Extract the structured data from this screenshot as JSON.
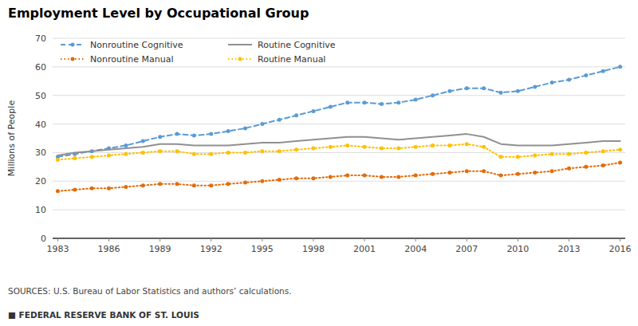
{
  "chart_data": {
    "type": "line",
    "title": "Employment Level by Occupational Group",
    "ylabel": "Millions of People",
    "annotations": [
      "SOURCES: U.S. Bureau of Labor Statistics and authors’ calculations.",
      "■  FEDERAL RESERVE BANK OF ST. LOUIS"
    ],
    "x": [
      1983,
      1984,
      1985,
      1986,
      1987,
      1988,
      1989,
      1990,
      1991,
      1992,
      1993,
      1994,
      1995,
      1996,
      1997,
      1998,
      1999,
      2000,
      2001,
      2002,
      2003,
      2004,
      2005,
      2006,
      2007,
      2008,
      2009,
      2010,
      2011,
      2012,
      2013,
      2014,
      2015,
      2016
    ],
    "xlim": [
      1982.7,
      2016.3
    ],
    "xticks": [
      1983,
      1986,
      1989,
      1992,
      1995,
      1998,
      2001,
      2004,
      2007,
      2010,
      2013,
      2016
    ],
    "ylim": [
      0,
      70
    ],
    "yticks": [
      0,
      10,
      20,
      30,
      40,
      50,
      60,
      70
    ],
    "grid": true,
    "legend": "top-left",
    "series": [
      {
        "name": "Nonroutine Cognitive",
        "color": "#5b9bd5",
        "line_style": "dashed",
        "marker": "circle",
        "values": [
          28.5,
          29.5,
          30.5,
          31.5,
          32.5,
          34.0,
          35.5,
          36.5,
          36.0,
          36.5,
          37.5,
          38.5,
          40.0,
          41.5,
          43.0,
          44.5,
          46.0,
          47.5,
          47.5,
          47.0,
          47.5,
          48.5,
          50.0,
          51.5,
          52.5,
          52.5,
          51.0,
          51.5,
          53.0,
          54.5,
          55.5,
          57.0,
          58.5,
          60.0
        ]
      },
      {
        "name": "Routine Cognitive",
        "color": "#909090",
        "line_style": "solid",
        "marker": "none",
        "values": [
          29.0,
          30.0,
          30.5,
          31.0,
          31.5,
          32.0,
          33.0,
          33.0,
          32.5,
          32.5,
          32.5,
          33.0,
          33.5,
          33.5,
          34.0,
          34.5,
          35.0,
          35.5,
          35.5,
          35.0,
          34.5,
          35.0,
          35.5,
          36.0,
          36.5,
          35.5,
          33.0,
          32.5,
          32.5,
          32.5,
          33.0,
          33.5,
          34.0,
          34.0
        ]
      },
      {
        "name": "Nonroutine Manual",
        "color": "#e36c09",
        "line_style": "dotted",
        "marker": "circle",
        "values": [
          16.5,
          17.0,
          17.5,
          17.5,
          18.0,
          18.5,
          19.0,
          19.0,
          18.5,
          18.5,
          19.0,
          19.5,
          20.0,
          20.5,
          21.0,
          21.0,
          21.5,
          22.0,
          22.0,
          21.5,
          21.5,
          22.0,
          22.5,
          23.0,
          23.5,
          23.5,
          22.0,
          22.5,
          23.0,
          23.5,
          24.5,
          25.0,
          25.5,
          26.5
        ]
      },
      {
        "name": "Routine Manual",
        "color": "#ffc000",
        "line_style": "dotted",
        "marker": "circle",
        "values": [
          27.5,
          28.0,
          28.5,
          29.0,
          29.5,
          30.0,
          30.5,
          30.5,
          29.5,
          29.5,
          30.0,
          30.0,
          30.5,
          30.5,
          31.0,
          31.5,
          32.0,
          32.5,
          32.0,
          31.5,
          31.5,
          32.0,
          32.5,
          32.5,
          33.0,
          32.0,
          28.5,
          28.5,
          29.0,
          29.5,
          29.5,
          30.0,
          30.5,
          31.0
        ]
      }
    ]
  }
}
